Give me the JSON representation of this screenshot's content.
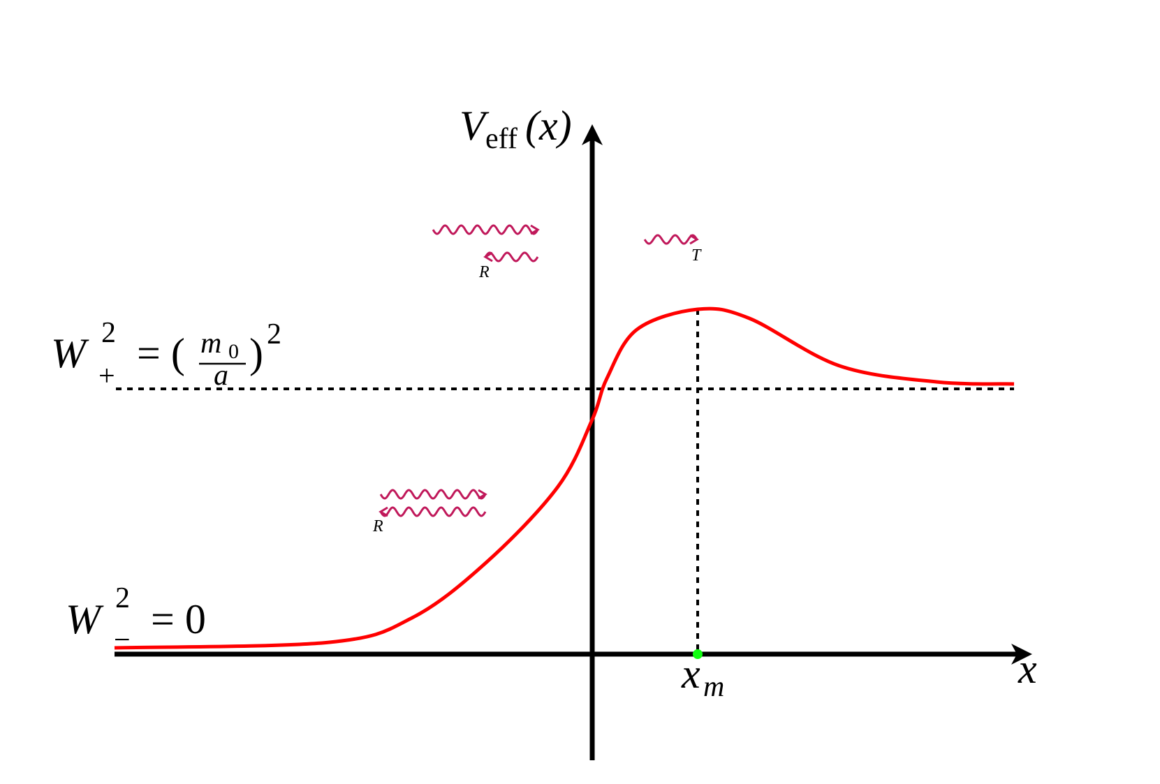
{
  "axes": {
    "y_label": {
      "symbol": "V",
      "subscript": "eff",
      "argument": "(x)"
    },
    "x_label": "x"
  },
  "marker": {
    "symbol": "x",
    "subscript": "m"
  },
  "levels": [
    {
      "symbol": "W",
      "superscript": "2",
      "subscript": "+",
      "equals": "= (",
      "numerator": "m",
      "numerator_subscript": "0",
      "denominator": "a",
      "close": ")",
      "power": "2"
    },
    {
      "symbol": "W",
      "superscript": "2",
      "subscript": "−",
      "equals": "= 0"
    }
  ],
  "waves": [
    {
      "label": "R"
    },
    {
      "label": "T"
    },
    {
      "label": "R"
    }
  ]
}
